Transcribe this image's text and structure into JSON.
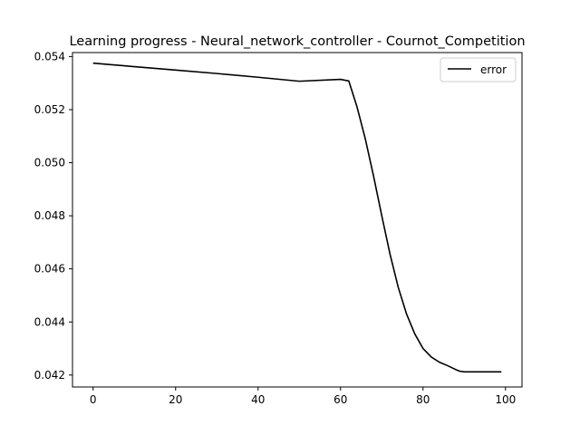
{
  "chart_data": {
    "type": "line",
    "title": "Learning progress - Neural_network_controller - Cournot_Competition",
    "xlabel": "",
    "ylabel": "",
    "xlim": [
      -5,
      104
    ],
    "ylim": [
      0.04155,
      0.05415
    ],
    "xticks": [
      0,
      20,
      40,
      60,
      80,
      100
    ],
    "yticks": [
      0.042,
      0.044,
      0.046,
      0.048,
      0.05,
      0.052,
      0.054
    ],
    "xtick_labels": [
      "0",
      "20",
      "40",
      "60",
      "80",
      "100"
    ],
    "ytick_labels": [
      "0.042",
      "0.044",
      "0.046",
      "0.048",
      "0.050",
      "0.052",
      "0.054"
    ],
    "grid": false,
    "legend_position": "top-right",
    "series": [
      {
        "name": "error",
        "color": "#000000",
        "x": [
          0,
          10,
          20,
          30,
          40,
          50,
          60,
          62,
          64,
          66,
          68,
          70,
          72,
          74,
          76,
          78,
          80,
          82,
          84,
          86,
          88,
          89,
          90,
          92,
          95,
          99
        ],
        "y": [
          0.05375,
          0.05362,
          0.05349,
          0.05336,
          0.05322,
          0.05307,
          0.05314,
          0.05308,
          0.0521,
          0.0509,
          0.0495,
          0.048,
          0.04655,
          0.0453,
          0.0443,
          0.04355,
          0.043,
          0.04268,
          0.04248,
          0.04235,
          0.0422,
          0.04214,
          0.04212,
          0.04212,
          0.04212,
          0.04212
        ]
      }
    ]
  }
}
